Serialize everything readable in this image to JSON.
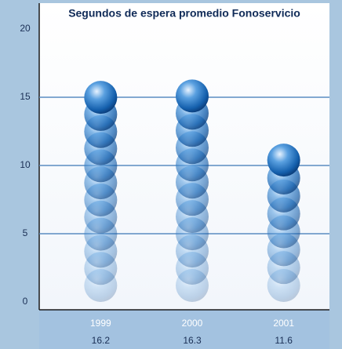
{
  "chart_data": {
    "type": "bar",
    "title": "Segundos de espera promedio Fonoservicio",
    "categories": [
      "1999",
      "2000",
      "2001"
    ],
    "values": [
      16.2,
      16.3,
      11.6
    ],
    "color": "#1f6fb8",
    "ylim": [
      0,
      20
    ],
    "yticks": [
      0,
      5,
      10,
      15,
      20
    ],
    "grid": true
  }
}
